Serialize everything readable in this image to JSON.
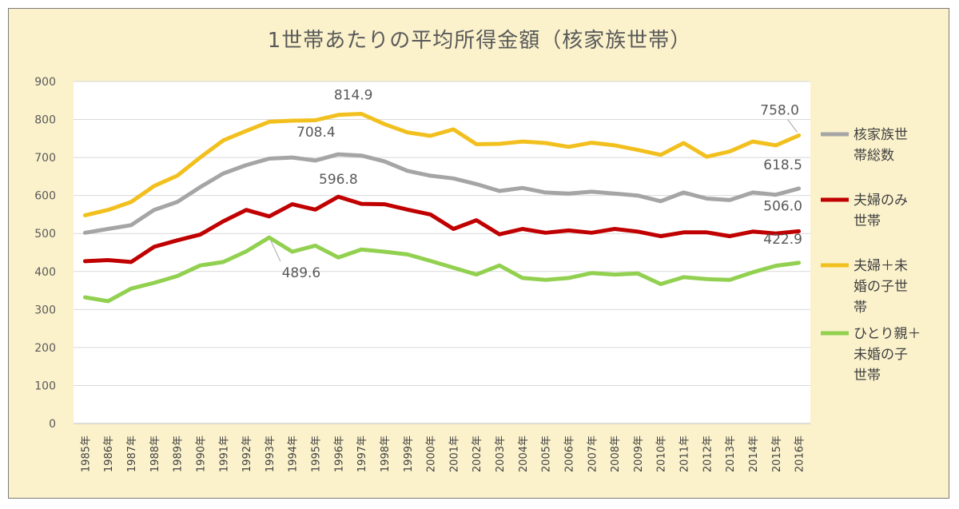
{
  "chart_data": {
    "type": "line",
    "title": "1世帯あたりの平均所得金額（核家族世帯）",
    "xlabel": "",
    "ylabel": "",
    "ylim": [
      0,
      900
    ],
    "yticks": [
      0,
      100,
      200,
      300,
      400,
      500,
      600,
      700,
      800,
      900
    ],
    "grid": true,
    "legend_position": "right",
    "categories": [
      "1985年",
      "1986年",
      "1987年",
      "1988年",
      "1989年",
      "1990年",
      "1991年",
      "1992年",
      "1993年",
      "1994年",
      "1995年",
      "1996年",
      "1997年",
      "1998年",
      "1999年",
      "2000年",
      "2001年",
      "2002年",
      "2003年",
      "2004年",
      "2005年",
      "2006年",
      "2007年",
      "2008年",
      "2009年",
      "2010年",
      "2011年",
      "2012年",
      "2013年",
      "2014年",
      "2015年",
      "2016年"
    ],
    "series": [
      {
        "name": "核家族世帯総数",
        "legend_lines": [
          "核家族世",
          "帯総数"
        ],
        "color": "#a5a5a5",
        "values": [
          502,
          512,
          522,
          562,
          583,
          622,
          658,
          680,
          697,
          700,
          692,
          708.4,
          705,
          690,
          665,
          652,
          645,
          630,
          612,
          620,
          608,
          605,
          610,
          605,
          600,
          585,
          608,
          592,
          588,
          608,
          602,
          618.5
        ]
      },
      {
        "name": "夫婦のみ世帯",
        "legend_lines": [
          "夫婦のみ",
          "世帯"
        ],
        "color": "#c00000",
        "values": [
          427,
          430,
          425,
          465,
          482,
          497,
          532,
          562,
          545,
          577,
          563,
          596.8,
          578,
          577,
          563,
          550,
          512,
          535,
          498,
          512,
          502,
          508,
          502,
          512,
          505,
          493,
          503,
          503,
          493,
          505,
          500,
          506.0
        ]
      },
      {
        "name": "夫婦＋未婚の子世帯",
        "legend_lines": [
          "夫婦＋未",
          "婚の子世",
          "帯"
        ],
        "color": "#f2c01e",
        "values": [
          548,
          562,
          583,
          625,
          652,
          700,
          745,
          770,
          794,
          797,
          798,
          812,
          814.9,
          788,
          766,
          757,
          774,
          735,
          736,
          742,
          738,
          728,
          739,
          732,
          720,
          707,
          738,
          702,
          716,
          742,
          732,
          758.0
        ]
      },
      {
        "name": "ひとり親＋未婚の子世帯",
        "legend_lines": [
          "ひとり親＋",
          "未婚の子",
          "世帯"
        ],
        "color": "#92d050",
        "values": [
          332,
          322,
          355,
          370,
          388,
          416,
          425,
          453,
          489.6,
          452,
          468,
          437,
          458,
          452,
          445,
          428,
          410,
          392,
          416,
          383,
          378,
          383,
          396,
          392,
          395,
          367,
          385,
          380,
          378,
          398,
          415,
          422.9
        ]
      }
    ],
    "annotations": [
      {
        "series": 2,
        "index": 12,
        "text": "814.9"
      },
      {
        "series": 0,
        "index": 11,
        "text": "708.4"
      },
      {
        "series": 1,
        "index": 11,
        "text": "596.8"
      },
      {
        "series": 3,
        "index": 8,
        "text": "489.6"
      },
      {
        "series": 2,
        "index": 31,
        "text": "758.0"
      },
      {
        "series": 0,
        "index": 31,
        "text": "618.5"
      },
      {
        "series": 1,
        "index": 31,
        "text": "506.0"
      },
      {
        "series": 3,
        "index": 31,
        "text": "422.9"
      }
    ]
  }
}
